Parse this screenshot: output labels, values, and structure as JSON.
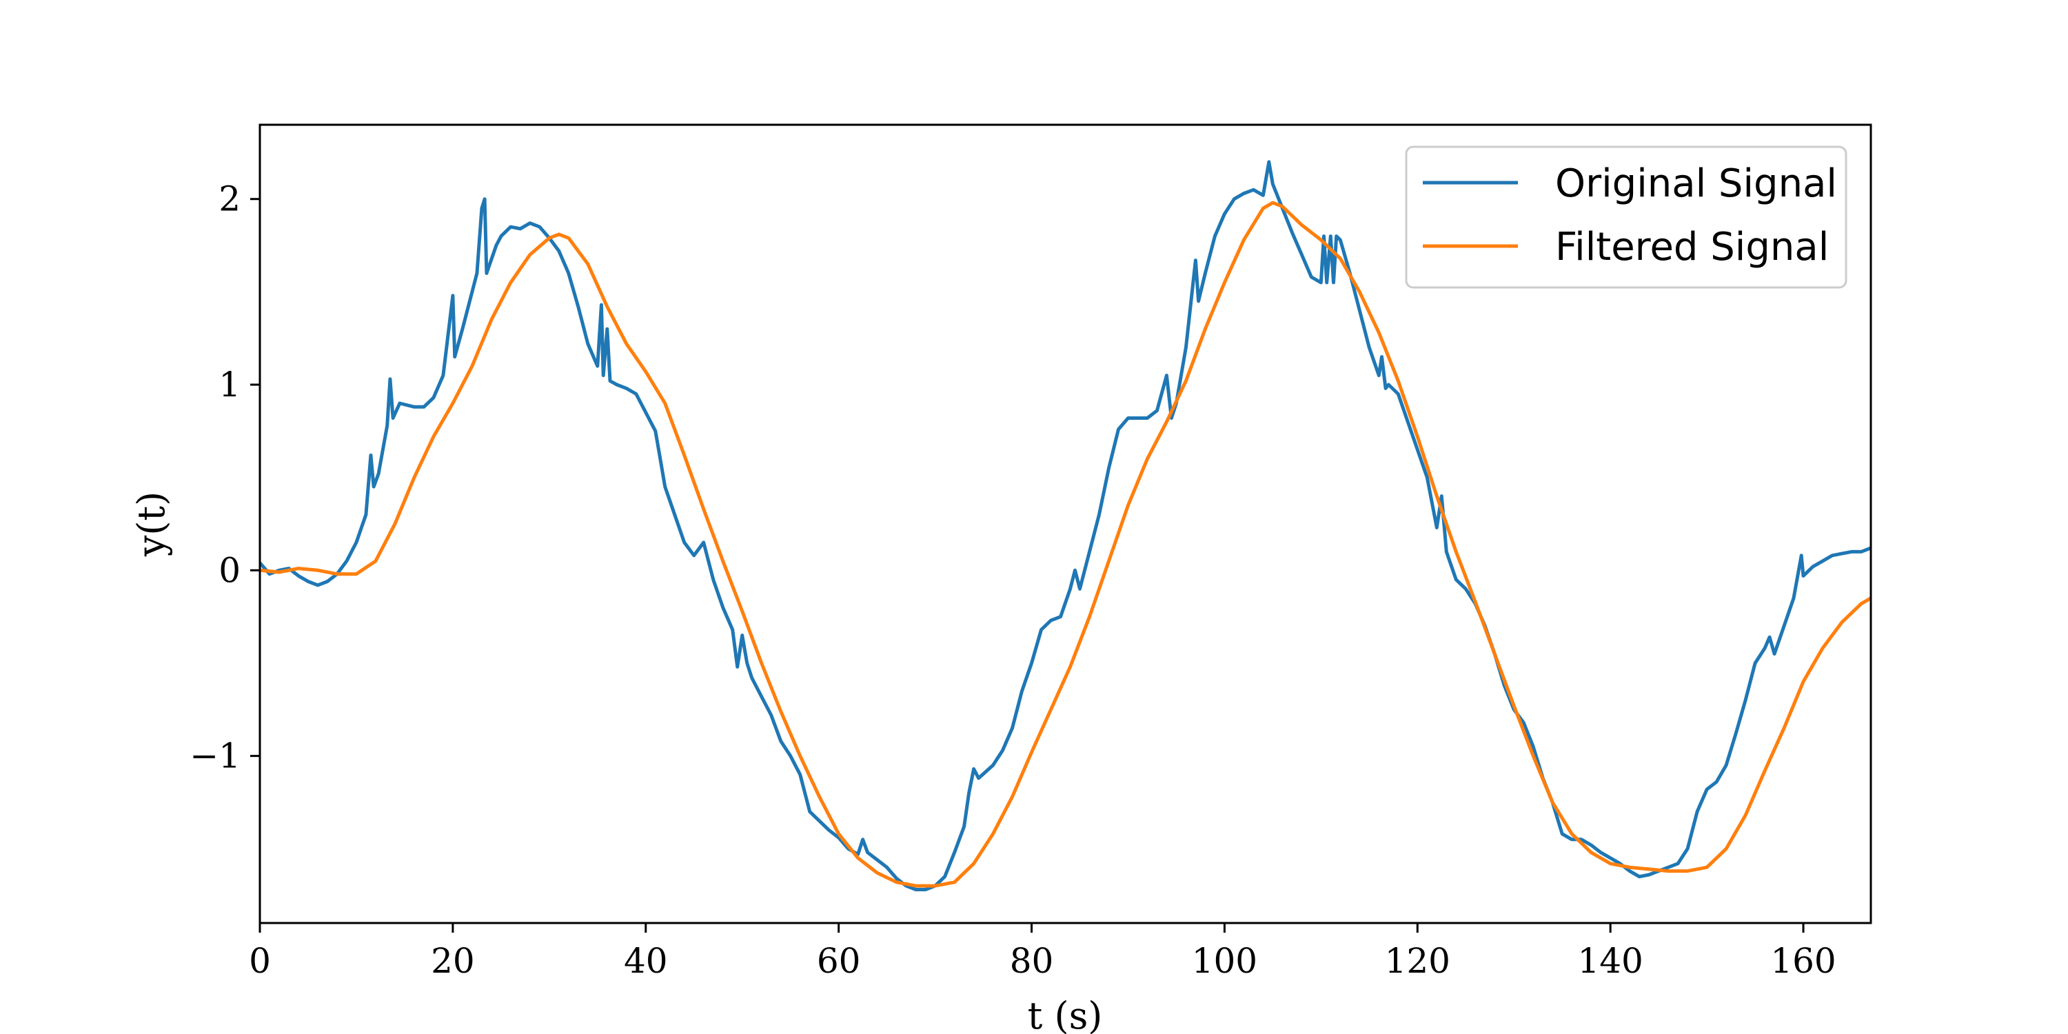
{
  "chart_data": {
    "type": "line",
    "xlabel": "t (s)",
    "ylabel": "y(t)",
    "xlim": [
      0,
      167
    ],
    "ylim": [
      -1.9,
      2.4
    ],
    "x_ticks": [
      0,
      20,
      40,
      60,
      80,
      100,
      120,
      140,
      160
    ],
    "y_ticks": [
      -1,
      0,
      1,
      2
    ],
    "grid": false,
    "legend_position": "top-right",
    "series": [
      {
        "name": "Original Signal",
        "color": "#1f77b4",
        "points": [
          [
            0,
            0.04
          ],
          [
            1,
            -0.02
          ],
          [
            2,
            0.0
          ],
          [
            3,
            0.01
          ],
          [
            4,
            -0.03
          ],
          [
            5,
            -0.06
          ],
          [
            6,
            -0.08
          ],
          [
            7,
            -0.06
          ],
          [
            8,
            -0.02
          ],
          [
            9,
            0.05
          ],
          [
            10,
            0.15
          ],
          [
            11,
            0.3
          ],
          [
            11.5,
            0.62
          ],
          [
            11.8,
            0.45
          ],
          [
            12.3,
            0.52
          ],
          [
            13.2,
            0.78
          ],
          [
            13.5,
            1.03
          ],
          [
            13.8,
            0.82
          ],
          [
            14.5,
            0.9
          ],
          [
            16,
            0.88
          ],
          [
            17,
            0.88
          ],
          [
            18,
            0.93
          ],
          [
            19,
            1.05
          ],
          [
            20,
            1.48
          ],
          [
            20.2,
            1.15
          ],
          [
            21,
            1.3
          ],
          [
            22,
            1.5
          ],
          [
            22.5,
            1.6
          ],
          [
            23,
            1.95
          ],
          [
            23.3,
            2.0
          ],
          [
            23.5,
            1.6
          ],
          [
            24.5,
            1.75
          ],
          [
            25,
            1.8
          ],
          [
            26,
            1.85
          ],
          [
            27,
            1.84
          ],
          [
            28,
            1.87
          ],
          [
            29,
            1.85
          ],
          [
            30,
            1.79
          ],
          [
            31,
            1.72
          ],
          [
            32,
            1.6
          ],
          [
            33,
            1.42
          ],
          [
            34,
            1.22
          ],
          [
            35,
            1.1
          ],
          [
            35.4,
            1.43
          ],
          [
            35.6,
            1.05
          ],
          [
            36,
            1.3
          ],
          [
            36.3,
            1.02
          ],
          [
            37,
            1.0
          ],
          [
            38,
            0.98
          ],
          [
            39,
            0.95
          ],
          [
            40,
            0.85
          ],
          [
            41,
            0.75
          ],
          [
            41.5,
            0.6
          ],
          [
            42,
            0.45
          ],
          [
            43,
            0.3
          ],
          [
            44,
            0.15
          ],
          [
            45,
            0.08
          ],
          [
            46,
            0.15
          ],
          [
            46.5,
            0.05
          ],
          [
            47,
            -0.05
          ],
          [
            48,
            -0.2
          ],
          [
            49,
            -0.32
          ],
          [
            49.5,
            -0.52
          ],
          [
            50,
            -0.35
          ],
          [
            50.5,
            -0.5
          ],
          [
            51,
            -0.58
          ],
          [
            52,
            -0.68
          ],
          [
            53,
            -0.78
          ],
          [
            54,
            -0.92
          ],
          [
            55,
            -1.0
          ],
          [
            56,
            -1.1
          ],
          [
            57,
            -1.3
          ],
          [
            58,
            -1.35
          ],
          [
            59,
            -1.4
          ],
          [
            60,
            -1.44
          ],
          [
            61,
            -1.5
          ],
          [
            62,
            -1.53
          ],
          [
            62.5,
            -1.45
          ],
          [
            63,
            -1.52
          ],
          [
            64,
            -1.56
          ],
          [
            65,
            -1.6
          ],
          [
            66,
            -1.66
          ],
          [
            67,
            -1.7
          ],
          [
            68,
            -1.72
          ],
          [
            69,
            -1.72
          ],
          [
            70,
            -1.7
          ],
          [
            71,
            -1.65
          ],
          [
            72,
            -1.52
          ],
          [
            73,
            -1.38
          ],
          [
            73.5,
            -1.2
          ],
          [
            74,
            -1.07
          ],
          [
            74.5,
            -1.12
          ],
          [
            76,
            -1.05
          ],
          [
            77,
            -0.97
          ],
          [
            78,
            -0.85
          ],
          [
            79,
            -0.65
          ],
          [
            80,
            -0.5
          ],
          [
            81,
            -0.32
          ],
          [
            82,
            -0.27
          ],
          [
            83,
            -0.25
          ],
          [
            84,
            -0.1
          ],
          [
            84.5,
            0.0
          ],
          [
            85,
            -0.1
          ],
          [
            86,
            0.1
          ],
          [
            87,
            0.3
          ],
          [
            88,
            0.55
          ],
          [
            89,
            0.76
          ],
          [
            90,
            0.82
          ],
          [
            91,
            0.82
          ],
          [
            92,
            0.82
          ],
          [
            93,
            0.86
          ],
          [
            94,
            1.05
          ],
          [
            94.5,
            0.82
          ],
          [
            95,
            0.9
          ],
          [
            96,
            1.2
          ],
          [
            97,
            1.67
          ],
          [
            97.3,
            1.45
          ],
          [
            98,
            1.6
          ],
          [
            99,
            1.8
          ],
          [
            100,
            1.92
          ],
          [
            101,
            2.0
          ],
          [
            102,
            2.03
          ],
          [
            103,
            2.05
          ],
          [
            104,
            2.02
          ],
          [
            104.6,
            2.2
          ],
          [
            105,
            2.08
          ],
          [
            106,
            1.95
          ],
          [
            107,
            1.82
          ],
          [
            108,
            1.7
          ],
          [
            109,
            1.58
          ],
          [
            110,
            1.55
          ],
          [
            110.3,
            1.8
          ],
          [
            110.6,
            1.55
          ],
          [
            111,
            1.8
          ],
          [
            111.3,
            1.55
          ],
          [
            111.6,
            1.8
          ],
          [
            112,
            1.78
          ],
          [
            113,
            1.6
          ],
          [
            114,
            1.4
          ],
          [
            115,
            1.2
          ],
          [
            116,
            1.05
          ],
          [
            116.3,
            1.15
          ],
          [
            116.7,
            0.98
          ],
          [
            117,
            1.0
          ],
          [
            118,
            0.95
          ],
          [
            119,
            0.8
          ],
          [
            120,
            0.65
          ],
          [
            121,
            0.5
          ],
          [
            122,
            0.23
          ],
          [
            122.5,
            0.4
          ],
          [
            123,
            0.1
          ],
          [
            124,
            -0.05
          ],
          [
            125,
            -0.1
          ],
          [
            126,
            -0.18
          ],
          [
            127,
            -0.3
          ],
          [
            128,
            -0.45
          ],
          [
            129,
            -0.62
          ],
          [
            130,
            -0.75
          ],
          [
            131,
            -0.82
          ],
          [
            132,
            -0.95
          ],
          [
            133,
            -1.12
          ],
          [
            134,
            -1.25
          ],
          [
            135,
            -1.42
          ],
          [
            136,
            -1.45
          ],
          [
            137,
            -1.45
          ],
          [
            138,
            -1.48
          ],
          [
            139,
            -1.52
          ],
          [
            140,
            -1.55
          ],
          [
            141,
            -1.58
          ],
          [
            142,
            -1.62
          ],
          [
            143,
            -1.65
          ],
          [
            144,
            -1.64
          ],
          [
            145,
            -1.62
          ],
          [
            146,
            -1.6
          ],
          [
            147,
            -1.58
          ],
          [
            148,
            -1.5
          ],
          [
            149,
            -1.3
          ],
          [
            150,
            -1.18
          ],
          [
            151,
            -1.14
          ],
          [
            152,
            -1.05
          ],
          [
            153,
            -0.88
          ],
          [
            154,
            -0.7
          ],
          [
            155,
            -0.5
          ],
          [
            156,
            -0.42
          ],
          [
            156.5,
            -0.36
          ],
          [
            157,
            -0.45
          ],
          [
            158,
            -0.3
          ],
          [
            159,
            -0.15
          ],
          [
            159.8,
            0.08
          ],
          [
            160,
            -0.03
          ],
          [
            161,
            0.02
          ],
          [
            162,
            0.05
          ],
          [
            163,
            0.08
          ],
          [
            164,
            0.09
          ],
          [
            165,
            0.1
          ],
          [
            166,
            0.1
          ],
          [
            167,
            0.12
          ]
        ]
      },
      {
        "name": "Filtered Signal",
        "color": "#ff7f0e",
        "points": [
          [
            0,
            0.0
          ],
          [
            2,
            -0.01
          ],
          [
            4,
            0.01
          ],
          [
            6,
            0.0
          ],
          [
            8,
            -0.02
          ],
          [
            10,
            -0.02
          ],
          [
            12,
            0.05
          ],
          [
            14,
            0.25
          ],
          [
            16,
            0.5
          ],
          [
            18,
            0.72
          ],
          [
            20,
            0.9
          ],
          [
            22,
            1.1
          ],
          [
            24,
            1.35
          ],
          [
            26,
            1.55
          ],
          [
            28,
            1.7
          ],
          [
            30,
            1.79
          ],
          [
            31,
            1.81
          ],
          [
            32,
            1.79
          ],
          [
            34,
            1.65
          ],
          [
            36,
            1.42
          ],
          [
            38,
            1.22
          ],
          [
            40,
            1.07
          ],
          [
            42,
            0.9
          ],
          [
            44,
            0.62
          ],
          [
            46,
            0.33
          ],
          [
            48,
            0.05
          ],
          [
            50,
            -0.22
          ],
          [
            52,
            -0.5
          ],
          [
            54,
            -0.76
          ],
          [
            56,
            -1.0
          ],
          [
            58,
            -1.22
          ],
          [
            60,
            -1.42
          ],
          [
            62,
            -1.55
          ],
          [
            64,
            -1.63
          ],
          [
            66,
            -1.68
          ],
          [
            68,
            -1.7
          ],
          [
            70,
            -1.7
          ],
          [
            72,
            -1.68
          ],
          [
            74,
            -1.58
          ],
          [
            76,
            -1.42
          ],
          [
            78,
            -1.22
          ],
          [
            80,
            -0.98
          ],
          [
            82,
            -0.75
          ],
          [
            84,
            -0.52
          ],
          [
            86,
            -0.25
          ],
          [
            88,
            0.05
          ],
          [
            90,
            0.35
          ],
          [
            92,
            0.6
          ],
          [
            94,
            0.8
          ],
          [
            96,
            1.02
          ],
          [
            98,
            1.3
          ],
          [
            100,
            1.55
          ],
          [
            102,
            1.78
          ],
          [
            104,
            1.95
          ],
          [
            105,
            1.98
          ],
          [
            106,
            1.96
          ],
          [
            108,
            1.86
          ],
          [
            110,
            1.78
          ],
          [
            112,
            1.68
          ],
          [
            114,
            1.5
          ],
          [
            116,
            1.28
          ],
          [
            118,
            1.02
          ],
          [
            120,
            0.72
          ],
          [
            122,
            0.4
          ],
          [
            124,
            0.1
          ],
          [
            126,
            -0.17
          ],
          [
            128,
            -0.45
          ],
          [
            130,
            -0.73
          ],
          [
            132,
            -1.0
          ],
          [
            134,
            -1.25
          ],
          [
            136,
            -1.42
          ],
          [
            138,
            -1.52
          ],
          [
            140,
            -1.58
          ],
          [
            142,
            -1.6
          ],
          [
            144,
            -1.61
          ],
          [
            146,
            -1.62
          ],
          [
            148,
            -1.62
          ],
          [
            150,
            -1.6
          ],
          [
            152,
            -1.5
          ],
          [
            154,
            -1.32
          ],
          [
            156,
            -1.08
          ],
          [
            158,
            -0.85
          ],
          [
            160,
            -0.6
          ],
          [
            162,
            -0.42
          ],
          [
            164,
            -0.28
          ],
          [
            166,
            -0.18
          ],
          [
            167,
            -0.15
          ]
        ]
      }
    ]
  }
}
